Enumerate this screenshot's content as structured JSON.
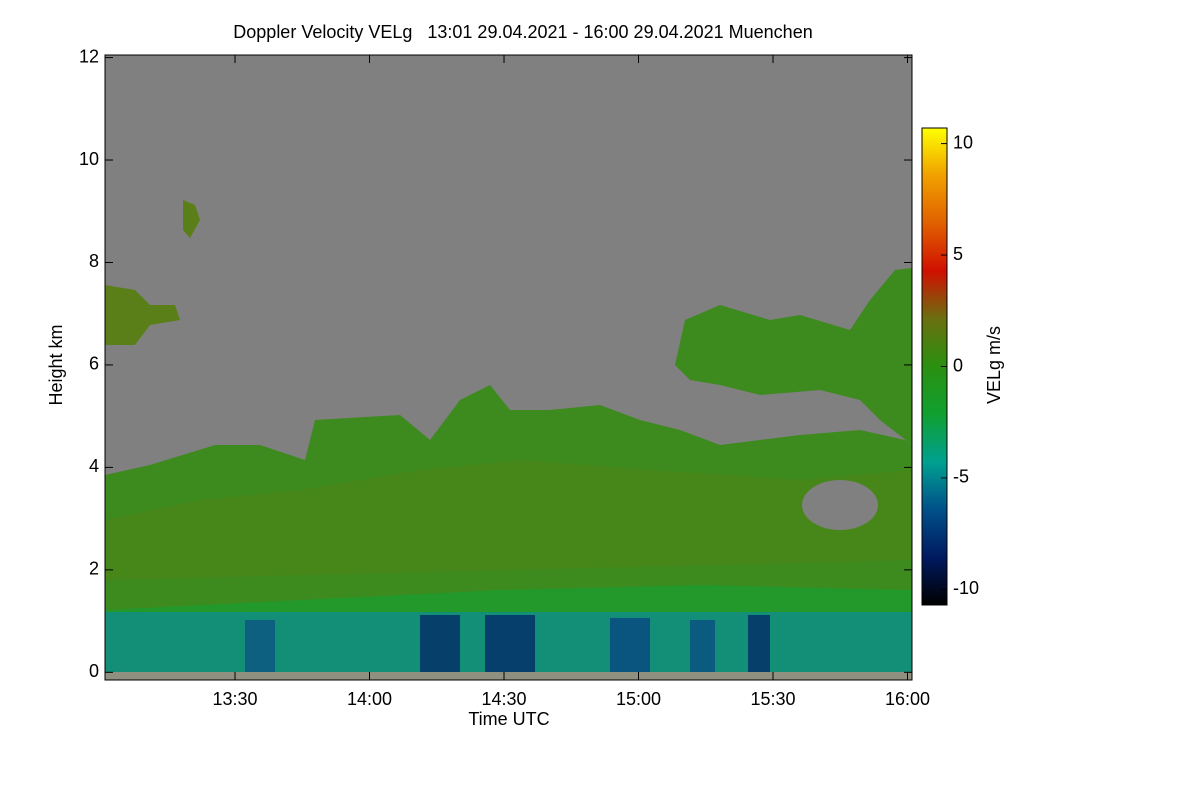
{
  "chart_data": {
    "type": "heatmap",
    "title": "Doppler Velocity VELg   13:01 29.04.2021 - 16:00 29.04.2021 Muenchen",
    "x_label": "Time UTC",
    "y_label": "Height km",
    "colorbar_label": "VELg m/s",
    "xlim": [
      "13:01",
      "16:01"
    ],
    "xticks": [
      "13:30",
      "14:00",
      "14:30",
      "15:00",
      "15:30",
      "16:00"
    ],
    "ylim": [
      -0.15,
      12.05
    ],
    "yticks": [
      0,
      2,
      4,
      6,
      8,
      10,
      12
    ],
    "clim": [
      -10.7,
      10.7
    ],
    "cticks": [
      -10,
      -5,
      0,
      5,
      10
    ],
    "colormap": [
      "#000000",
      "#001a60",
      "#00508a",
      "#00a090",
      "#10a030",
      "#2a9010",
      "#6a7010",
      "#d01000",
      "#e06000",
      "#f0a000",
      "#ffff00"
    ],
    "background_color": "#808080"
  }
}
